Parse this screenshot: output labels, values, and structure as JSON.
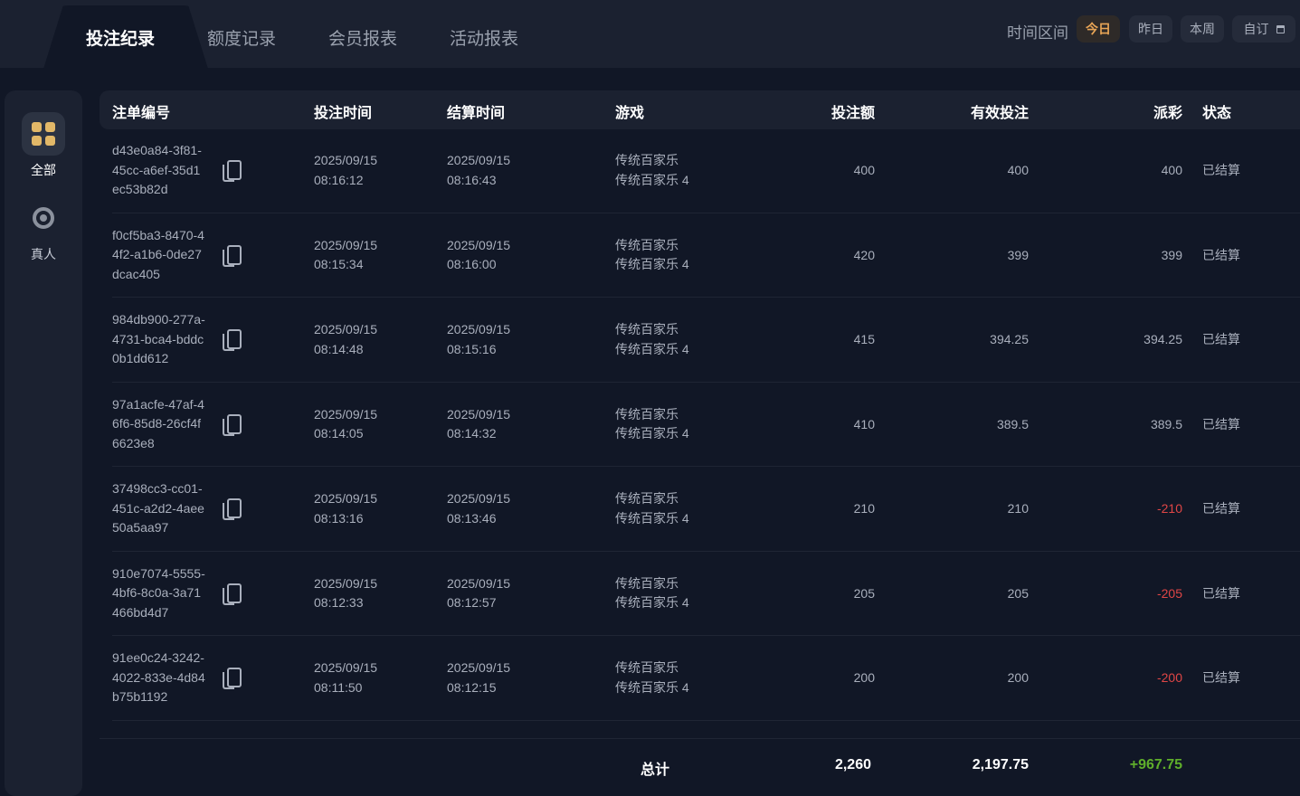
{
  "tabs": [
    {
      "label": "投注纪录",
      "active": true
    },
    {
      "label": "额度记录"
    },
    {
      "label": "会员报表"
    },
    {
      "label": "活动报表"
    }
  ],
  "time_filter": {
    "label": "时间区间",
    "options": [
      {
        "label": "今日",
        "active": true
      },
      {
        "label": "昨日"
      },
      {
        "label": "本周"
      },
      {
        "label": "自订",
        "icon": "calendar-icon"
      }
    ]
  },
  "accent_color": "#e8a556",
  "sidebar": [
    {
      "label": "全部",
      "icon": "grid-icon",
      "active": true
    },
    {
      "label": "真人",
      "icon": "poker-chip-icon"
    }
  ],
  "table": {
    "headers": [
      "注单编号",
      "投注时间",
      "结算时间",
      "游戏",
      "投注额",
      "有效投注",
      "派彩",
      "状态"
    ],
    "rows": [
      {
        "id": [
          "d43e0a84-3f81-",
          "45cc-a6ef-35d1",
          "ec53b82d"
        ],
        "bet_time": [
          "2025/09/15",
          "08:16:12"
        ],
        "settle_time": [
          "2025/09/15",
          "08:16:43"
        ],
        "game": [
          "传统百家乐",
          "传统百家乐 4"
        ],
        "bet": "400",
        "valid": "400",
        "payout": "400",
        "status": "已结算"
      },
      {
        "id": [
          "f0cf5ba3-8470-4",
          "4f2-a1b6-0de27",
          "dcac405"
        ],
        "bet_time": [
          "2025/09/15",
          "08:15:34"
        ],
        "settle_time": [
          "2025/09/15",
          "08:16:00"
        ],
        "game": [
          "传统百家乐",
          "传统百家乐 4"
        ],
        "bet": "420",
        "valid": "399",
        "payout": "399",
        "status": "已结算"
      },
      {
        "id": [
          "984db900-277a-",
          "4731-bca4-bddc",
          "0b1dd612"
        ],
        "bet_time": [
          "2025/09/15",
          "08:14:48"
        ],
        "settle_time": [
          "2025/09/15",
          "08:15:16"
        ],
        "game": [
          "传统百家乐",
          "传统百家乐 4"
        ],
        "bet": "415",
        "valid": "394.25",
        "payout": "394.25",
        "status": "已结算"
      },
      {
        "id": [
          "97a1acfe-47af-4",
          "6f6-85d8-26cf4f",
          "6623e8"
        ],
        "bet_time": [
          "2025/09/15",
          "08:14:05"
        ],
        "settle_time": [
          "2025/09/15",
          "08:14:32"
        ],
        "game": [
          "传统百家乐",
          "传统百家乐 4"
        ],
        "bet": "410",
        "valid": "389.5",
        "payout": "389.5",
        "status": "已结算"
      },
      {
        "id": [
          "37498cc3-cc01-",
          "451c-a2d2-4aee",
          "50a5aa97"
        ],
        "bet_time": [
          "2025/09/15",
          "08:13:16"
        ],
        "settle_time": [
          "2025/09/15",
          "08:13:46"
        ],
        "game": [
          "传统百家乐",
          "传统百家乐 4"
        ],
        "bet": "210",
        "valid": "210",
        "payout": "-210",
        "status": "已结算"
      },
      {
        "id": [
          "910e7074-5555-",
          "4bf6-8c0a-3a71",
          "466bd4d7"
        ],
        "bet_time": [
          "2025/09/15",
          "08:12:33"
        ],
        "settle_time": [
          "2025/09/15",
          "08:12:57"
        ],
        "game": [
          "传统百家乐",
          "传统百家乐 4"
        ],
        "bet": "205",
        "valid": "205",
        "payout": "-205",
        "status": "已结算"
      },
      {
        "id": [
          "91ee0c24-3242-",
          "4022-833e-4d84",
          "b75b1192"
        ],
        "bet_time": [
          "2025/09/15",
          "08:11:50"
        ],
        "settle_time": [
          "2025/09/15",
          "08:12:15"
        ],
        "game": [
          "传统百家乐",
          "传统百家乐 4"
        ],
        "bet": "200",
        "valid": "200",
        "payout": "-200",
        "status": "已结算"
      }
    ],
    "total": {
      "label": "总计",
      "bet": "2,260",
      "valid": "2,197.75",
      "payout": "+967.75"
    }
  },
  "colors": {
    "negative": "#e04646",
    "positive": "#5fae2b"
  }
}
